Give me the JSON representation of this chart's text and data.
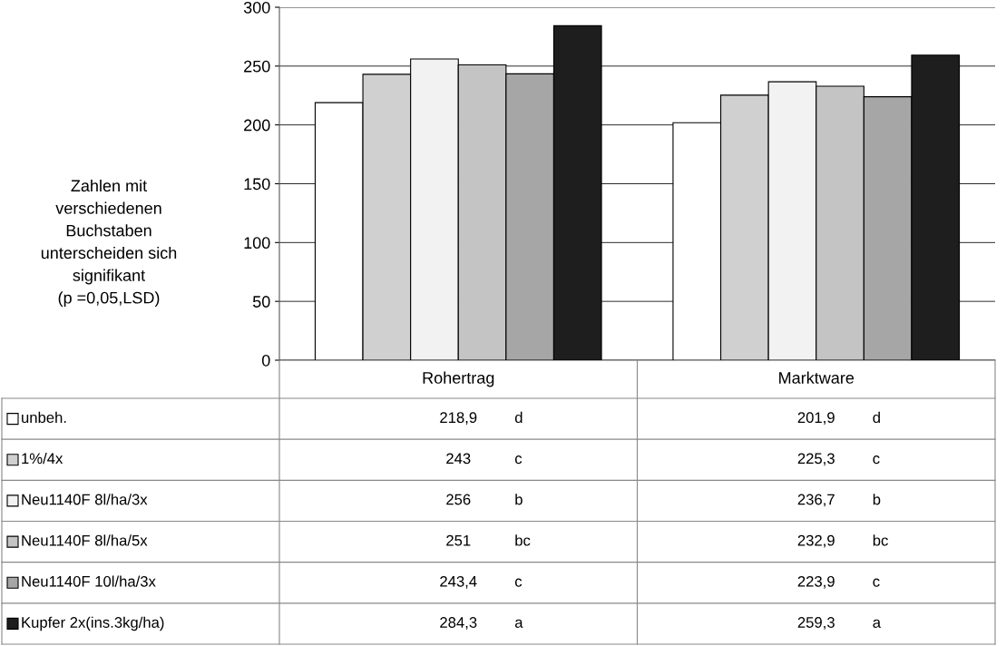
{
  "chart_data": {
    "type": "bar",
    "ylabel": "Zahlen mit\nverschiedenen\nBuchstaben\nunterscheiden sich\nsignifikant\n(p =0,05,LSD)",
    "categories": [
      "Rohertrag",
      "Marktware"
    ],
    "series": [
      {
        "name": "unbeh.",
        "color": "#ffffff",
        "values": [
          218.9,
          201.9
        ],
        "value_labels": [
          "218,9",
          "201,9"
        ]
      },
      {
        "name": "1%/4x",
        "color": "#d0d0d0",
        "values": [
          243,
          225.3
        ],
        "value_labels": [
          "243",
          "225,3"
        ]
      },
      {
        "name": "Neu1140F 8l/ha/3x",
        "color": "#f2f2f2",
        "values": [
          256,
          236.7
        ],
        "value_labels": [
          "256",
          "236,7"
        ]
      },
      {
        "name": "Neu1140F 8l/ha/5x",
        "color": "#c4c4c4",
        "values": [
          251,
          232.9
        ],
        "value_labels": [
          "251",
          "232,9"
        ]
      },
      {
        "name": "Neu1140F 10l/ha/3x",
        "color": "#a6a6a6",
        "values": [
          243.4,
          223.9
        ],
        "value_labels": [
          "243,4",
          "223,9"
        ]
      },
      {
        "name": "Kupfer 2x(ins.3kg/ha)",
        "color": "#1e1e1e",
        "values": [
          284.3,
          259.3
        ],
        "value_labels": [
          "284,3",
          "259,3"
        ]
      }
    ],
    "annotations": [
      "d",
      "d",
      "c",
      "c",
      "b",
      "b",
      "bc",
      "bc",
      "c",
      "c",
      "a",
      "a"
    ],
    "ylim": [
      0,
      300
    ],
    "yticks": [
      0,
      50,
      100,
      150,
      200,
      250,
      300
    ],
    "grid": "y",
    "legend": "bottom left"
  }
}
